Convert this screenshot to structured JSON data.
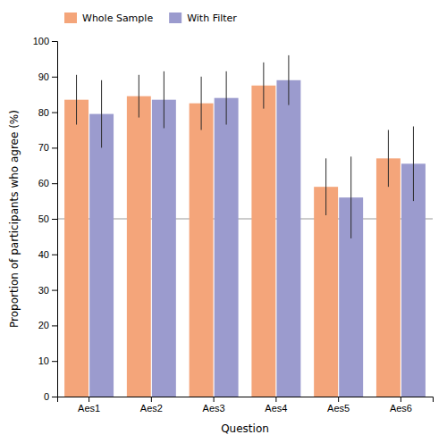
{
  "chart_data": {
    "type": "bar",
    "categories": [
      "Aes1",
      "Aes2",
      "Aes3",
      "Aes4",
      "Aes5",
      "Aes6"
    ],
    "series": [
      {
        "name": "Whole Sample",
        "color": "#F4A57A",
        "values": [
          83.5,
          84.5,
          82.5,
          87.5,
          59.0,
          67.0
        ],
        "errors": [
          7.0,
          6.0,
          7.5,
          6.5,
          8.0,
          8.0
        ]
      },
      {
        "name": "With Filter",
        "color": "#9B9BCE",
        "values": [
          79.5,
          83.5,
          84.0,
          89.0,
          56.0,
          65.5
        ],
        "errors": [
          9.5,
          8.0,
          7.5,
          7.0,
          11.5,
          10.5
        ]
      }
    ],
    "xlabel": "Question",
    "ylabel": "Proportion of participants who agree (%)",
    "ylim": [
      0,
      100
    ],
    "yticks": [
      0,
      10,
      20,
      30,
      40,
      50,
      60,
      70,
      80,
      90,
      100
    ],
    "hline": 50,
    "grid": false,
    "legend": "upper left"
  }
}
